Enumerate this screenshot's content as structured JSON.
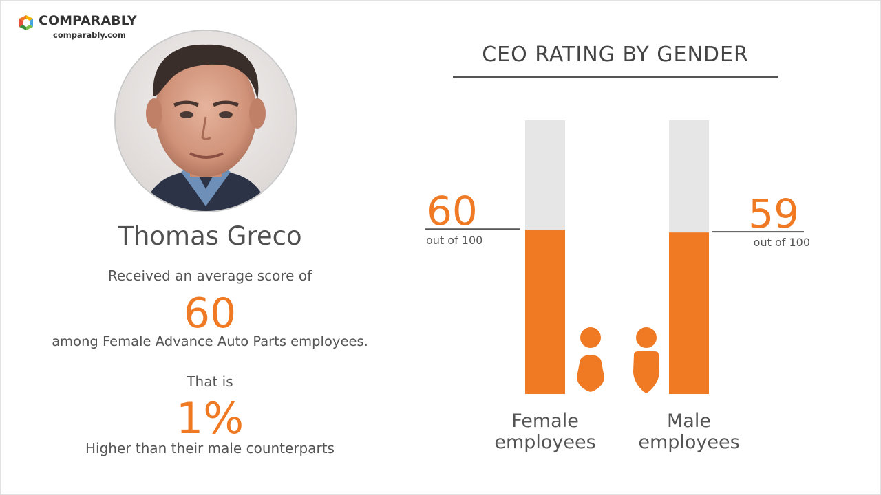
{
  "brand": {
    "name": "COMPARABLY",
    "url": "comparably.com"
  },
  "person": {
    "name": "Thomas Greco",
    "line1": "Received an average score of",
    "score": "60",
    "line2": "among Female Advance Auto Parts employees.",
    "line3": "That is",
    "difference": "1%",
    "line4": "Higher than their male counterparts"
  },
  "colors": {
    "accent": "#f07a23",
    "track": "#e6e6e6",
    "text": "#555555"
  },
  "chart_data": {
    "type": "bar",
    "title": "CEO RATING BY GENDER",
    "categories": [
      "Female employees",
      "Male employees"
    ],
    "category_lines": [
      [
        "Female",
        "employees"
      ],
      [
        "Male",
        "employees"
      ]
    ],
    "values": [
      60,
      59
    ],
    "value_labels": [
      "60",
      "59"
    ],
    "sublabel": "out of 100",
    "ylim": [
      0,
      100
    ],
    "icons": [
      "female-person-icon",
      "male-person-icon"
    ]
  }
}
